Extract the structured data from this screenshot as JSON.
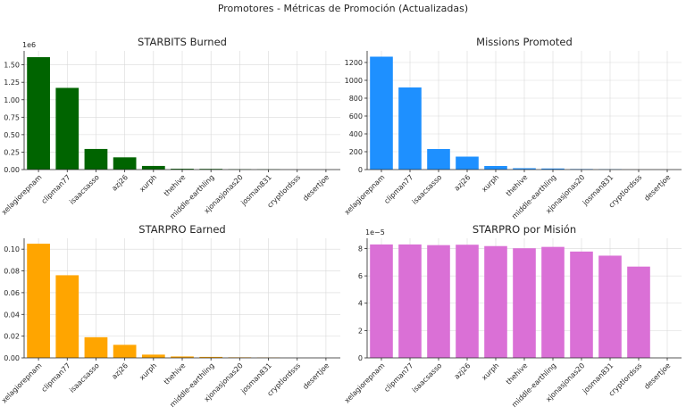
{
  "figure_title": "Promotores - Métricas de Promoción (Actualizadas)",
  "chart_data": [
    {
      "type": "bar",
      "title": "STARBITS Burned",
      "categories": [
        "xelagiorepnam",
        "clipman77",
        "isaacsasso",
        "azj26",
        "xurph",
        "thehive",
        "middle-earthling",
        "xjonasjonas20",
        "josman831",
        "cryptlordsss",
        "desertjoe"
      ],
      "values": [
        1610000,
        1170000,
        295000,
        175000,
        52000,
        12000,
        10000,
        5000,
        3500,
        0,
        0
      ],
      "color": "#006400",
      "ylim": [
        0,
        1700000
      ],
      "sci_label": "1e6",
      "ytick_values": [
        0,
        250000,
        500000,
        750000,
        1000000,
        1250000,
        1500000
      ],
      "ytick_labels": [
        "0.00",
        "0.25",
        "0.50",
        "0.75",
        "1.00",
        "1.25",
        "1.50"
      ],
      "grid": true
    },
    {
      "type": "bar",
      "title": "Missions Promoted",
      "categories": [
        "xelagiorepnam",
        "clipman77",
        "isaacsasso",
        "azj26",
        "xurph",
        "thehive",
        "middle-earthling",
        "xjonasjonas20",
        "josman831",
        "cryptlordsss",
        "desertjoe"
      ],
      "values": [
        1265,
        920,
        230,
        145,
        40,
        15,
        12,
        6,
        4,
        0,
        0
      ],
      "color": "#1e90ff",
      "ylim": [
        0,
        1330
      ],
      "sci_label": "",
      "ytick_values": [
        0,
        200,
        400,
        600,
        800,
        1000,
        1200
      ],
      "ytick_labels": [
        "0",
        "200",
        "400",
        "600",
        "800",
        "1000",
        "1200"
      ],
      "grid": true
    },
    {
      "type": "bar",
      "title": "STARPRO Earned",
      "categories": [
        "xelagiorepnam",
        "clipman77",
        "isaacsasso",
        "azj26",
        "xurph",
        "thehive",
        "middle-earthling",
        "xjonasjonas20",
        "josman831",
        "cryptlordsss",
        "desertjoe"
      ],
      "values": [
        0.105,
        0.076,
        0.019,
        0.012,
        0.003,
        0.0013,
        0.0009,
        0.0005,
        0.0003,
        0,
        0
      ],
      "color": "#ffa500",
      "ylim": [
        0,
        0.11
      ],
      "sci_label": "",
      "ytick_values": [
        0,
        0.02,
        0.04,
        0.06,
        0.08,
        0.1
      ],
      "ytick_labels": [
        "0.00",
        "0.02",
        "0.04",
        "0.06",
        "0.08",
        "0.10"
      ],
      "grid": true
    },
    {
      "type": "bar",
      "title": "STARPRO por Misión",
      "categories": [
        "xelagiorepnam",
        "clipman77",
        "isaacsasso",
        "azj26",
        "xurph",
        "thehive",
        "middle-earthling",
        "xjonasjonas20",
        "josman831",
        "cryptlordsss",
        "desertjoe"
      ],
      "values": [
        8.3e-05,
        8.3e-05,
        8.25e-05,
        8.28e-05,
        8.18e-05,
        8.02e-05,
        8.12e-05,
        7.78e-05,
        7.48e-05,
        6.68e-05,
        0
      ],
      "color": "#da70d6",
      "ylim": [
        0,
        8.75e-05
      ],
      "sci_label": "1e−5",
      "ytick_values": [
        0,
        2e-05,
        4e-05,
        6e-05,
        8e-05
      ],
      "ytick_labels": [
        "0",
        "2",
        "4",
        "6",
        "8"
      ],
      "grid": true
    }
  ]
}
